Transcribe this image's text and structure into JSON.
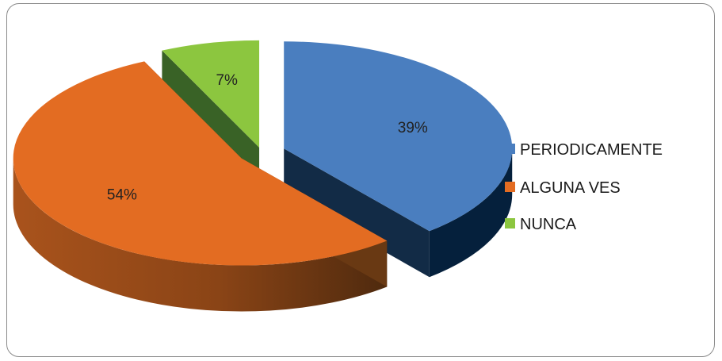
{
  "chart_data": {
    "type": "pie",
    "title": "",
    "categories": [
      "PERIODICAMENTE",
      "ALGUNA VES",
      "NUNCA"
    ],
    "values": [
      39,
      54,
      7
    ],
    "labels": [
      "39%",
      "54%",
      "7%"
    ],
    "style": "3d-exploded",
    "legend_position": "right",
    "colors": {
      "top": [
        "#4a7ebf",
        "#e36c22",
        "#8cc63f"
      ],
      "side": [
        "#05203c",
        "#6a3a14",
        "#2e5a1a"
      ]
    }
  }
}
